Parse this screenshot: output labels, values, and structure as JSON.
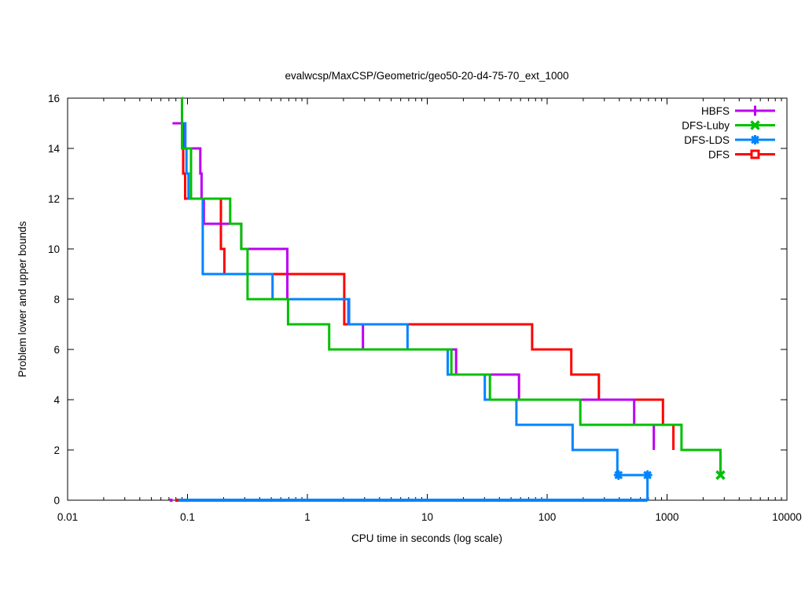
{
  "chart_data": {
    "type": "line",
    "subtype": "step-bounds",
    "title": "evalwcsp/MaxCSP/Geometric/geo50-20-d4-75-70_ext_1000",
    "xlabel": "CPU time in seconds (log scale)",
    "ylabel": "Problem lower and upper bounds",
    "x_scale": "log",
    "xlim": [
      0.01,
      10000
    ],
    "ylim": [
      0,
      16
    ],
    "x_ticks": [
      {
        "value": 0.01,
        "label": "0.01"
      },
      {
        "value": 0.1,
        "label": "0.1"
      },
      {
        "value": 1,
        "label": "1"
      },
      {
        "value": 10,
        "label": "10"
      },
      {
        "value": 100,
        "label": "100"
      },
      {
        "value": 1000,
        "label": "1000"
      },
      {
        "value": 10000,
        "label": "10000"
      }
    ],
    "y_ticks": [
      0,
      2,
      4,
      6,
      8,
      10,
      12,
      14,
      16
    ],
    "grid": false,
    "legend_position": "top-right",
    "series": [
      {
        "name": "HBFS",
        "color": "#bb00f0",
        "marker": "plus",
        "upper_bound_steps": [
          [
            0.075,
            15
          ],
          [
            0.093,
            14
          ],
          [
            0.128,
            13
          ],
          [
            0.131,
            12
          ],
          [
            0.137,
            11
          ],
          [
            0.281,
            10
          ],
          [
            0.68,
            8
          ],
          [
            2.2,
            7
          ],
          [
            2.91,
            6
          ],
          [
            17.4,
            5
          ],
          [
            58.2,
            4
          ],
          [
            532,
            3
          ],
          [
            776,
            2
          ]
        ],
        "curve_markers": [],
        "lower_bound_segment": [
          [
            0.071,
            0
          ],
          [
            0.075,
            0
          ]
        ]
      },
      {
        "name": "DFS-Luby",
        "color": "#00c000",
        "marker": "x",
        "upper_bound_steps": [
          [
            0.089,
            16
          ],
          [
            0.09,
            14
          ],
          [
            0.107,
            12
          ],
          [
            0.227,
            11
          ],
          [
            0.281,
            10
          ],
          [
            0.317,
            8
          ],
          [
            0.69,
            7
          ],
          [
            1.52,
            6
          ],
          [
            15.9,
            5
          ],
          [
            33.3,
            4
          ],
          [
            189,
            3
          ],
          [
            1320,
            2
          ],
          [
            2790,
            1
          ]
        ],
        "curve_markers": [
          [
            2790,
            1
          ]
        ],
        "lower_bound_segment": null
      },
      {
        "name": "DFS-LDS",
        "color": "#0084ff",
        "marker": "asterisk",
        "upper_bound_steps": [
          [
            0.093,
            15
          ],
          [
            0.096,
            14
          ],
          [
            0.098,
            13
          ],
          [
            0.102,
            12
          ],
          [
            0.134,
            9
          ],
          [
            0.512,
            8
          ],
          [
            2.23,
            7
          ],
          [
            6.85,
            6
          ],
          [
            14.8,
            5
          ],
          [
            30.2,
            4
          ],
          [
            55.4,
            3
          ],
          [
            163,
            2
          ],
          [
            385,
            1
          ],
          [
            687,
            0
          ]
        ],
        "curve_markers": [
          [
            394,
            1
          ],
          [
            687,
            1
          ]
        ],
        "lower_bound_segment": [
          [
            0.084,
            0
          ],
          [
            687,
            0
          ]
        ]
      },
      {
        "name": "DFS",
        "color": "#ff0000",
        "marker": "square",
        "upper_bound_steps": [
          [
            0.088,
            14
          ],
          [
            0.092,
            13
          ],
          [
            0.0955,
            12
          ],
          [
            0.19,
            10
          ],
          [
            0.203,
            9
          ],
          [
            2.03,
            7
          ],
          [
            74.9,
            6
          ],
          [
            159,
            5
          ],
          [
            270,
            4
          ],
          [
            925,
            3
          ],
          [
            1130,
            2
          ]
        ],
        "curve_markers": [],
        "lower_bound_segment": [
          [
            0.079,
            0
          ],
          [
            0.084,
            0
          ]
        ]
      }
    ],
    "draw_order": [
      "DFS",
      "HBFS",
      "DFS-LDS",
      "DFS-Luby"
    ]
  }
}
